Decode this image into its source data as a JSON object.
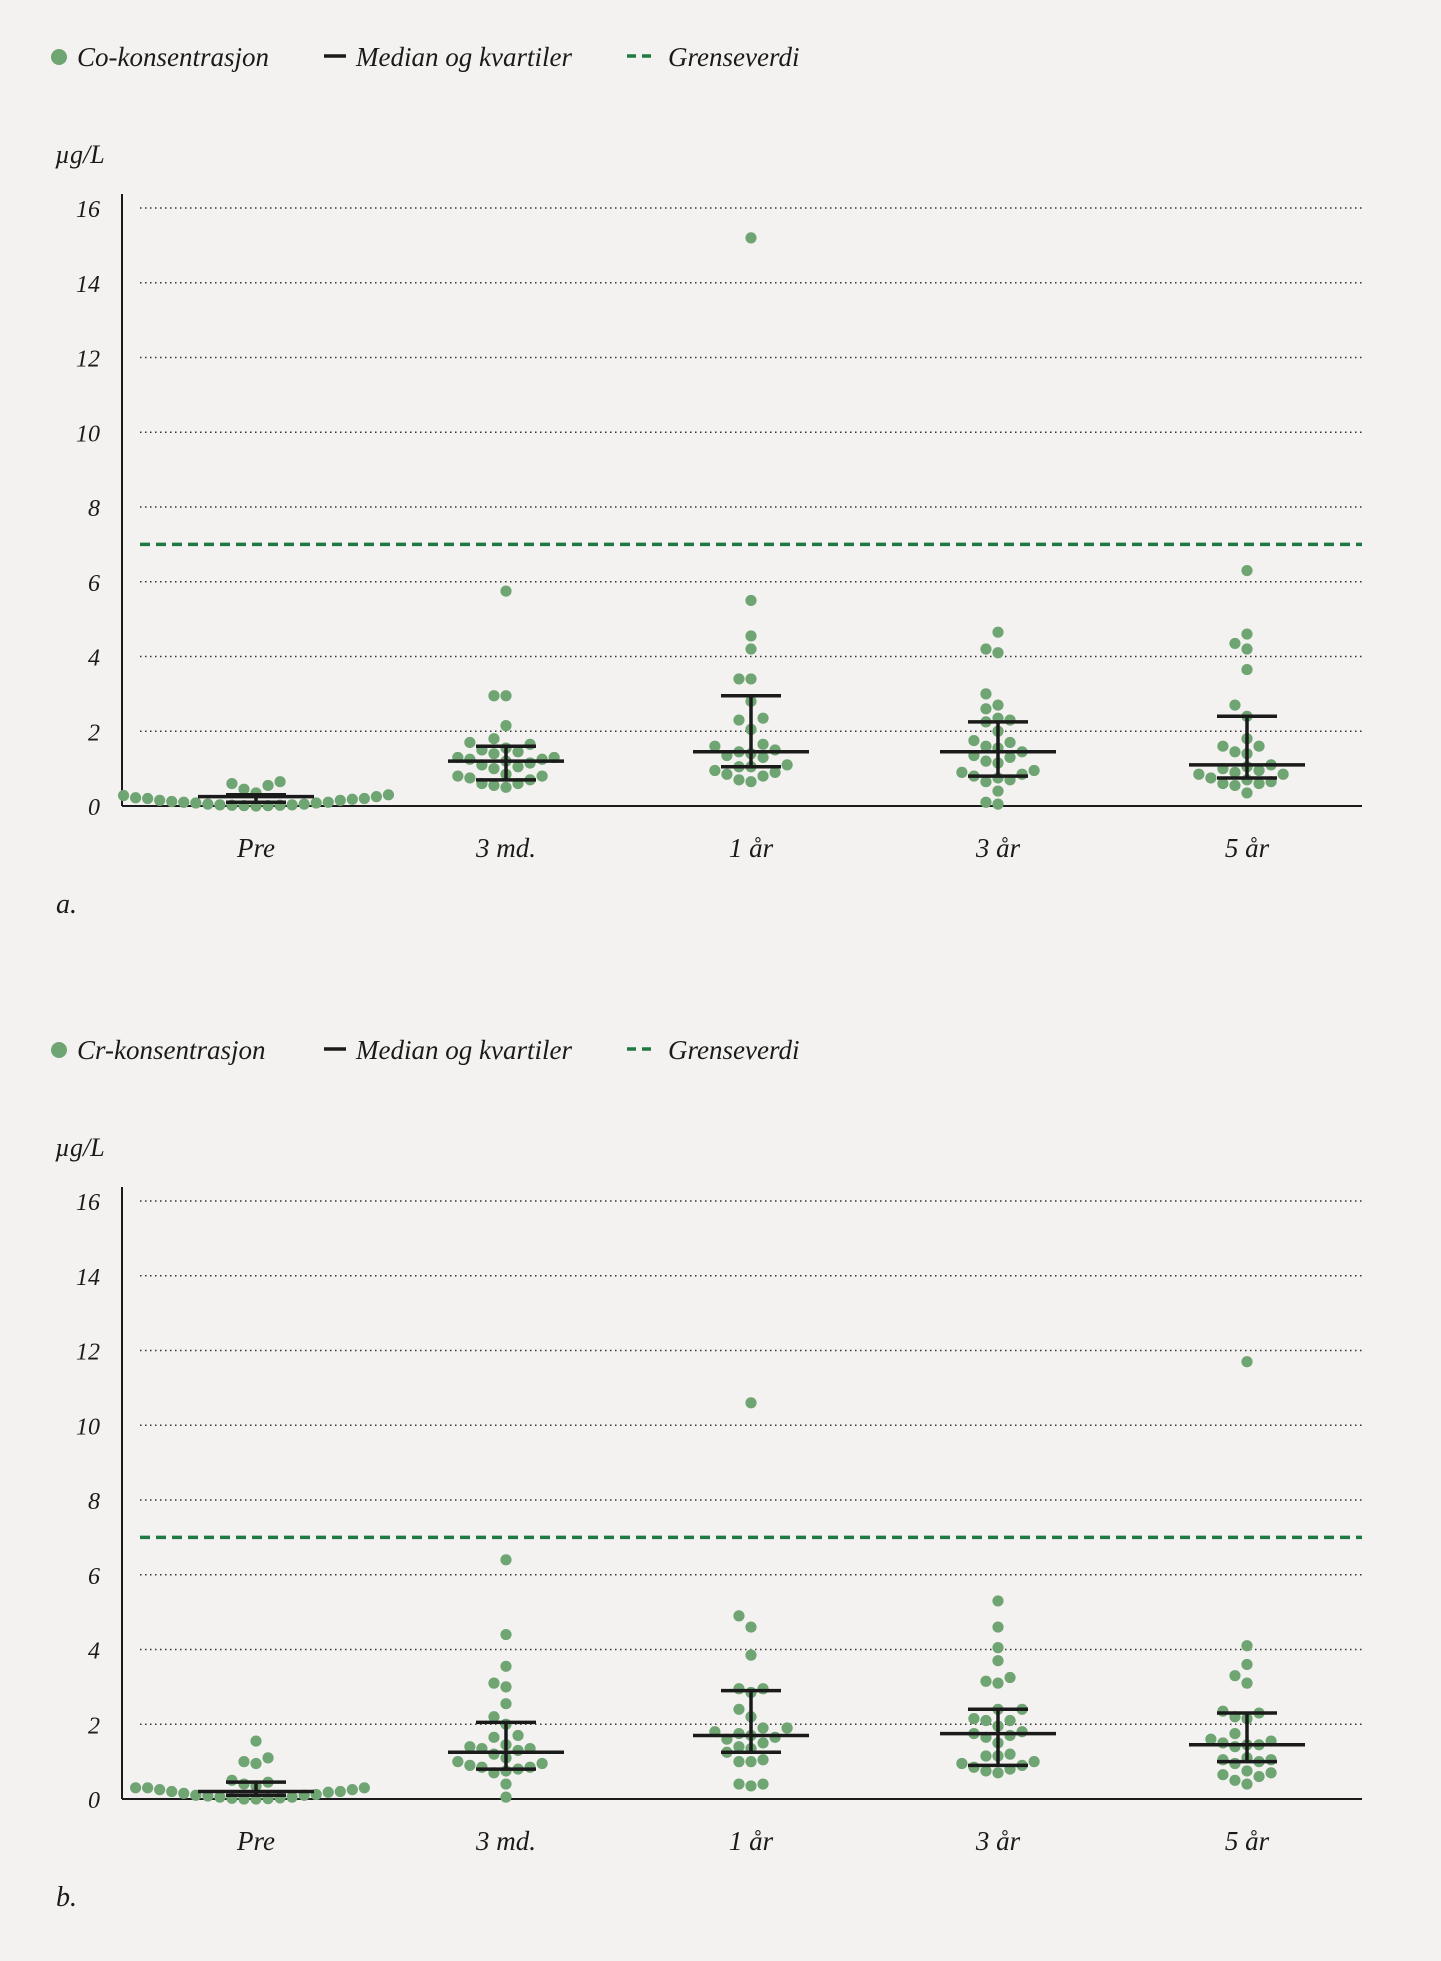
{
  "colors": {
    "point": "#6fa473",
    "median": "#1a1a1a",
    "limit": "#1e7a42",
    "grid": "#333333",
    "background": "#f4f2f0"
  },
  "chart_data": [
    {
      "type": "scatter",
      "panel_label": "a.",
      "title": "",
      "ylabel": "µg/L",
      "xlabel": "",
      "ylim": [
        0,
        16
      ],
      "yticks": [
        "0",
        "2",
        "4",
        "6",
        "8",
        "10",
        "12",
        "14",
        "16"
      ],
      "grid": true,
      "legend": {
        "placement": "top-left",
        "points": "Co-konsentrasjon",
        "median": "Median og kvartiler",
        "limit": "Grenseverdi"
      },
      "limit_value": 7,
      "categories": [
        "Pre",
        "3 md.",
        "1 år",
        "3 år",
        "5 år"
      ],
      "series": [
        {
          "name": "Pre",
          "median": 0.25,
          "q1": 0.1,
          "q3": 0.3,
          "values": [
            0.65,
            0.6,
            0.55,
            0.45,
            0.35,
            0.3,
            0.28,
            0.25,
            0.22,
            0.2,
            0.2,
            0.18,
            0.15,
            0.15,
            0.12,
            0.1,
            0.1,
            0.08,
            0.08,
            0.05,
            0.05,
            0.03,
            0.03,
            0.02,
            0.02,
            0.01,
            0.01,
            0.0
          ]
        },
        {
          "name": "3 md.",
          "median": 1.2,
          "q1": 0.7,
          "q3": 1.6,
          "values": [
            5.75,
            2.95,
            2.95,
            2.15,
            1.8,
            1.7,
            1.65,
            1.55,
            1.5,
            1.45,
            1.4,
            1.3,
            1.3,
            1.25,
            1.25,
            1.2,
            1.15,
            1.1,
            1.05,
            1.0,
            0.85,
            0.8,
            0.8,
            0.75,
            0.7,
            0.6,
            0.6,
            0.55,
            0.5
          ]
        },
        {
          "name": "1 år",
          "median": 1.45,
          "q1": 1.05,
          "q3": 2.95,
          "values": [
            15.2,
            5.5,
            4.55,
            4.2,
            3.4,
            3.4,
            2.8,
            2.35,
            2.3,
            2.05,
            1.65,
            1.6,
            1.5,
            1.45,
            1.4,
            1.35,
            1.3,
            1.1,
            1.05,
            1.05,
            0.95,
            0.9,
            0.85,
            0.8,
            0.7,
            0.65
          ]
        },
        {
          "name": "3 år",
          "median": 1.45,
          "q1": 0.8,
          "q3": 2.25,
          "values": [
            4.65,
            4.2,
            4.1,
            3.0,
            2.7,
            2.6,
            2.35,
            2.3,
            2.25,
            2.0,
            1.75,
            1.7,
            1.6,
            1.55,
            1.45,
            1.35,
            1.3,
            1.2,
            1.15,
            0.95,
            0.9,
            0.85,
            0.8,
            0.75,
            0.7,
            0.65,
            0.4,
            0.1,
            0.05
          ]
        },
        {
          "name": "5 år",
          "median": 1.1,
          "q1": 0.75,
          "q3": 2.4,
          "values": [
            6.3,
            4.6,
            4.35,
            4.2,
            3.65,
            2.7,
            2.4,
            1.8,
            1.6,
            1.6,
            1.45,
            1.4,
            1.1,
            1.05,
            1.0,
            0.95,
            0.9,
            0.85,
            0.85,
            0.75,
            0.7,
            0.65,
            0.6,
            0.6,
            0.55,
            0.35
          ]
        }
      ]
    },
    {
      "type": "scatter",
      "panel_label": "b.",
      "title": "",
      "ylabel": "µg/L",
      "xlabel": "",
      "ylim": [
        0,
        16
      ],
      "yticks": [
        "0",
        "2",
        "4",
        "6",
        "8",
        "10",
        "12",
        "14",
        "16"
      ],
      "grid": true,
      "legend": {
        "placement": "top-left",
        "points": "Cr-konsentrasjon",
        "median": "Median og kvartiler",
        "limit": "Grenseverdi"
      },
      "limit_value": 7,
      "categories": [
        "Pre",
        "3 md.",
        "1 år",
        "3 år",
        "5 år"
      ],
      "series": [
        {
          "name": "Pre",
          "median": 0.2,
          "q1": 0.1,
          "q3": 0.45,
          "values": [
            1.55,
            1.1,
            1.0,
            0.95,
            0.5,
            0.45,
            0.4,
            0.35,
            0.3,
            0.3,
            0.3,
            0.25,
            0.25,
            0.2,
            0.2,
            0.18,
            0.15,
            0.12,
            0.1,
            0.1,
            0.08,
            0.05,
            0.05,
            0.03,
            0.02,
            0.01,
            0.0,
            0.0
          ]
        },
        {
          "name": "3 md.",
          "median": 1.25,
          "q1": 0.8,
          "q3": 2.05,
          "values": [
            6.4,
            4.4,
            3.55,
            3.1,
            3.0,
            2.55,
            2.2,
            2.0,
            1.7,
            1.65,
            1.45,
            1.4,
            1.35,
            1.35,
            1.3,
            1.2,
            1.1,
            1.0,
            0.95,
            0.9,
            0.85,
            0.85,
            0.8,
            0.75,
            0.7,
            0.4,
            0.05
          ]
        },
        {
          "name": "1 år",
          "median": 1.7,
          "q1": 1.25,
          "q3": 2.9,
          "values": [
            10.6,
            4.9,
            4.6,
            3.85,
            2.95,
            2.95,
            2.85,
            2.4,
            2.2,
            1.9,
            1.9,
            1.8,
            1.75,
            1.7,
            1.65,
            1.6,
            1.5,
            1.4,
            1.35,
            1.25,
            1.05,
            1.0,
            1.0,
            0.4,
            0.4,
            0.35
          ]
        },
        {
          "name": "3 år",
          "median": 1.75,
          "q1": 0.9,
          "q3": 2.4,
          "values": [
            5.3,
            4.6,
            4.05,
            3.7,
            3.25,
            3.15,
            3.1,
            2.4,
            2.4,
            2.15,
            2.1,
            2.1,
            1.95,
            1.8,
            1.75,
            1.7,
            1.65,
            1.5,
            1.2,
            1.15,
            1.15,
            1.0,
            0.95,
            0.9,
            0.85,
            0.8,
            0.75,
            0.7
          ]
        },
        {
          "name": "5 år",
          "median": 1.45,
          "q1": 1.0,
          "q3": 2.3,
          "values": [
            11.7,
            4.1,
            3.6,
            3.3,
            3.1,
            2.35,
            2.3,
            2.2,
            2.15,
            1.75,
            1.6,
            1.55,
            1.5,
            1.45,
            1.45,
            1.4,
            1.1,
            1.05,
            1.05,
            1.0,
            0.95,
            0.75,
            0.7,
            0.65,
            0.6,
            0.5,
            0.4
          ]
        }
      ]
    }
  ]
}
